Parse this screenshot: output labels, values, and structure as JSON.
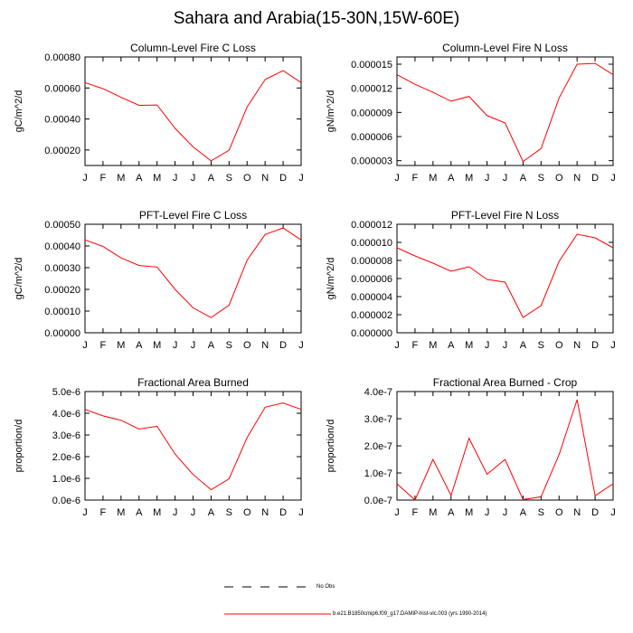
{
  "figure": {
    "title": "Sahara and Arabia(15-30N,15W-60E)"
  },
  "legend": {
    "obs_label": "No Obs",
    "model_label": "b.e21.B1850cmip6.f09_g17.DAMIP-hist-vlc.003 (yrs 1990-2014)",
    "obs_color": "#000000",
    "model_color": "#ff0000"
  },
  "chart_data": [
    {
      "type": "line",
      "title": "Column-Level Fire C Loss",
      "ylabel": "gC/m^2/d",
      "categories": [
        "J",
        "F",
        "M",
        "A",
        "M",
        "J",
        "J",
        "A",
        "S",
        "O",
        "N",
        "D",
        "J"
      ],
      "ylim": [
        0.0001,
        0.0008
      ],
      "yticks": [
        0.0002,
        0.0004,
        0.0006,
        0.0008
      ],
      "yticklabels": [
        "0.00020",
        "0.00040",
        "0.00060",
        "0.00080"
      ],
      "series": [
        {
          "name": "b.e21.B1850cmip6.f09_g17.DAMIP-hist-vlc.003",
          "color": "#ff0000",
          "values": [
            0.000635,
            0.000595,
            0.00054,
            0.000488,
            0.00049,
            0.00034,
            0.00022,
            0.00013,
            0.000198,
            0.000478,
            0.000655,
            0.000712,
            0.000635
          ]
        }
      ]
    },
    {
      "type": "line",
      "title": "Column-Level Fire N Loss",
      "ylabel": "gN/m^2/d",
      "categories": [
        "J",
        "F",
        "M",
        "A",
        "M",
        "J",
        "J",
        "A",
        "S",
        "O",
        "N",
        "D",
        "J"
      ],
      "ylim": [
        2.4e-06,
        1.59e-05
      ],
      "yticks": [
        3e-06,
        6e-06,
        9e-06,
        1.2e-05,
        1.5e-05
      ],
      "yticklabels": [
        "0.000003",
        "0.000006",
        "0.000009",
        "0.000012",
        "0.000015"
      ],
      "series": [
        {
          "name": "b.e21.B1850cmip6.f09_g17.DAMIP-hist-vlc.003",
          "color": "#ff0000",
          "values": [
            1.37e-05,
            1.25e-05,
            1.15e-05,
            1.04e-05,
            1.1e-05,
            8.6e-06,
            7.7e-06,
            2.9e-06,
            4.5e-06,
            1.08e-05,
            1.5e-05,
            1.51e-05,
            1.37e-05
          ]
        }
      ]
    },
    {
      "type": "line",
      "title": "PFT-Level Fire C Loss",
      "ylabel": "gC/m^2/d",
      "categories": [
        "J",
        "F",
        "M",
        "A",
        "M",
        "J",
        "J",
        "A",
        "S",
        "O",
        "N",
        "D",
        "J"
      ],
      "ylim": [
        0,
        0.0005
      ],
      "yticks": [
        0,
        0.0001,
        0.0002,
        0.0003,
        0.0004,
        0.0005
      ],
      "yticklabels": [
        "0.00000",
        "0.00010",
        "0.00020",
        "0.00030",
        "0.00040",
        "0.00050"
      ],
      "series": [
        {
          "name": "b.e21.B1850cmip6.f09_g17.DAMIP-hist-vlc.003",
          "color": "#ff0000",
          "values": [
            0.000428,
            0.000398,
            0.000345,
            0.00031,
            0.000303,
            0.0002,
            0.000115,
            7e-05,
            0.000127,
            0.000335,
            0.000453,
            0.000483,
            0.000428
          ]
        }
      ]
    },
    {
      "type": "line",
      "title": "PFT-Level Fire N Loss",
      "ylabel": "gN/m^2/d",
      "categories": [
        "J",
        "F",
        "M",
        "A",
        "M",
        "J",
        "J",
        "A",
        "S",
        "O",
        "N",
        "D",
        "J"
      ],
      "ylim": [
        0,
        1.2e-05
      ],
      "yticks": [
        0,
        2e-06,
        4e-06,
        6e-06,
        8e-06,
        1e-05,
        1.2e-05
      ],
      "yticklabels": [
        "0.000000",
        "0.000002",
        "0.000004",
        "0.000006",
        "0.000008",
        "0.000010",
        "0.000012"
      ],
      "series": [
        {
          "name": "b.e21.B1850cmip6.f09_g17.DAMIP-hist-vlc.003",
          "color": "#ff0000",
          "values": [
            9.4e-06,
            8.5e-06,
            7.7e-06,
            6.8e-06,
            7.3e-06,
            5.9e-06,
            5.6e-06,
            1.7e-06,
            3e-06,
            7.9e-06,
            1.09e-05,
            1.05e-05,
            9.4e-06
          ]
        }
      ]
    },
    {
      "type": "line",
      "title": "Fractional Area Burned",
      "ylabel": "proportion/d",
      "categories": [
        "J",
        "F",
        "M",
        "A",
        "M",
        "J",
        "J",
        "A",
        "S",
        "O",
        "N",
        "D",
        "J"
      ],
      "ylim": [
        0,
        5e-06
      ],
      "yticks": [
        0,
        1e-06,
        2e-06,
        3e-06,
        4e-06,
        5e-06
      ],
      "yticklabels": [
        "0.0e-6",
        "1.0e-6",
        "2.0e-6",
        "3.0e-6",
        "4.0e-6",
        "5.0e-6"
      ],
      "series": [
        {
          "name": "b.e21.B1850cmip6.f09_g17.DAMIP-hist-vlc.003",
          "color": "#ff0000",
          "values": [
            4.18e-06,
            3.88e-06,
            3.68e-06,
            3.27e-06,
            3.4e-06,
            2.12e-06,
            1.18e-06,
            4.8e-07,
            9.8e-07,
            2.88e-06,
            4.28e-06,
            4.47e-06,
            4.18e-06
          ]
        }
      ]
    },
    {
      "type": "line",
      "title": "Fractional Area Burned - Crop",
      "ylabel": "proportion/d",
      "categories": [
        "J",
        "F",
        "M",
        "A",
        "M",
        "J",
        "J",
        "A",
        "S",
        "O",
        "N",
        "D",
        "J"
      ],
      "ylim": [
        0,
        4e-07
      ],
      "yticks": [
        0,
        1e-07,
        2e-07,
        3e-07,
        4e-07
      ],
      "yticklabels": [
        "0.0e-7",
        "1.0e-7",
        "2.0e-7",
        "3.0e-7",
        "4.0e-7"
      ],
      "series": [
        {
          "name": "b.e21.B1850cmip6.f09_g17.DAMIP-hist-vlc.003",
          "color": "#ff0000",
          "values": [
            6e-08,
            5e-10,
            1.5e-07,
            1.7e-08,
            2.28e-07,
            9.5e-08,
            1.5e-07,
            2e-09,
            1.2e-08,
            1.68e-07,
            3.7e-07,
            1.6e-08,
            6e-08
          ]
        }
      ]
    }
  ]
}
